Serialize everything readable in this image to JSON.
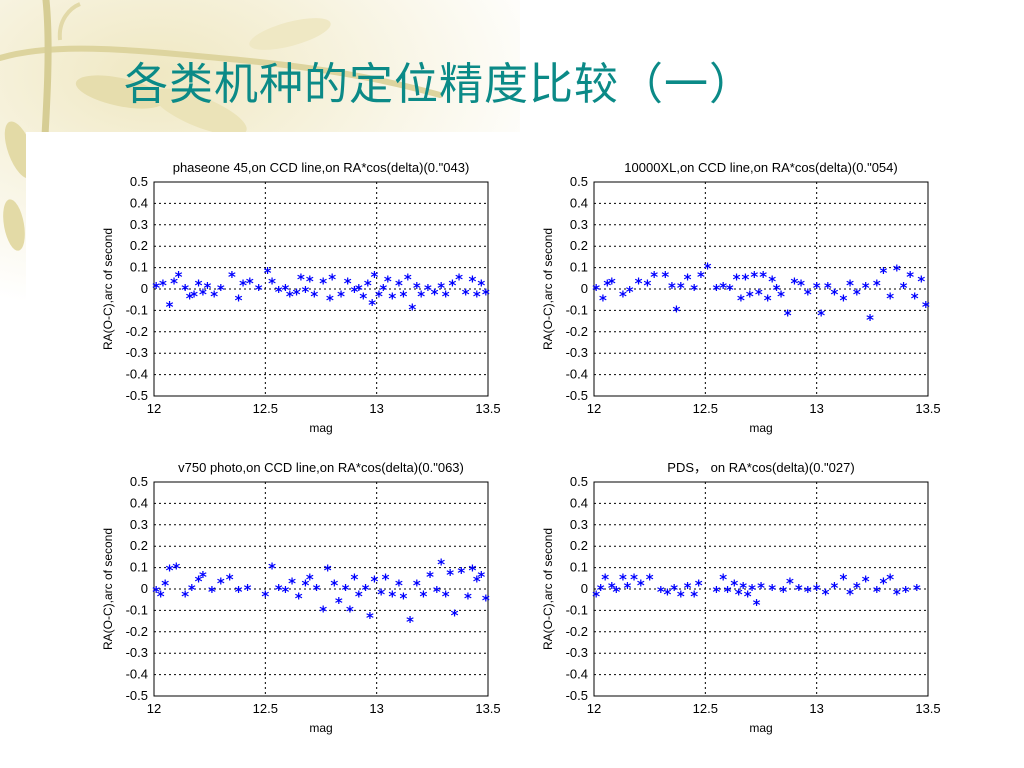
{
  "slide": {
    "title": "各类机种的定位精度比较（一）",
    "accent_color": "#0b8a87",
    "decoration": "cream-bamboo-branch-top-left"
  },
  "chart_data": [
    {
      "type": "scatter",
      "title": "phaseone 45,on CCD line,on RA*cos(delta)(0.\"043)",
      "xlabel": "mag",
      "ylabel": "RA(O-C),arc of second",
      "xlim": [
        12,
        13.5
      ],
      "ylim": [
        -0.5,
        0.5
      ],
      "xticks": [
        "12",
        "12.5",
        "13",
        "13.5"
      ],
      "yticks": [
        "0.5",
        "0.4",
        "0.3",
        "0.2",
        "0.1",
        "0",
        "-0.1",
        "-0.2",
        "-0.3",
        "-0.4",
        "-0.5"
      ],
      "grid": "dashed",
      "marker": "*",
      "color": "#0000ff",
      "points": [
        [
          12.01,
          0.01
        ],
        [
          12.04,
          0.02
        ],
        [
          12.07,
          -0.08
        ],
        [
          12.09,
          0.03
        ],
        [
          12.11,
          0.06
        ],
        [
          12.14,
          0.0
        ],
        [
          12.16,
          -0.04
        ],
        [
          12.18,
          -0.03
        ],
        [
          12.2,
          0.02
        ],
        [
          12.22,
          -0.02
        ],
        [
          12.24,
          0.01
        ],
        [
          12.27,
          -0.03
        ],
        [
          12.3,
          0.0
        ],
        [
          12.35,
          0.06
        ],
        [
          12.38,
          -0.05
        ],
        [
          12.4,
          0.02
        ],
        [
          12.43,
          0.03
        ],
        [
          12.47,
          0.0
        ],
        [
          12.51,
          0.08
        ],
        [
          12.53,
          0.03
        ],
        [
          12.56,
          -0.01
        ],
        [
          12.59,
          0.0
        ],
        [
          12.61,
          -0.03
        ],
        [
          12.64,
          -0.02
        ],
        [
          12.66,
          0.05
        ],
        [
          12.68,
          -0.01
        ],
        [
          12.7,
          0.04
        ],
        [
          12.72,
          -0.03
        ],
        [
          12.76,
          0.03
        ],
        [
          12.79,
          -0.05
        ],
        [
          12.8,
          0.05
        ],
        [
          12.84,
          -0.03
        ],
        [
          12.87,
          0.03
        ],
        [
          12.9,
          -0.01
        ],
        [
          12.92,
          0.0
        ],
        [
          12.94,
          -0.04
        ],
        [
          12.96,
          0.02
        ],
        [
          12.98,
          -0.07
        ],
        [
          12.99,
          0.06
        ],
        [
          13.01,
          -0.03
        ],
        [
          13.03,
          0.0
        ],
        [
          13.05,
          0.04
        ],
        [
          13.07,
          -0.04
        ],
        [
          13.1,
          0.02
        ],
        [
          13.12,
          -0.03
        ],
        [
          13.14,
          0.05
        ],
        [
          13.16,
          -0.09
        ],
        [
          13.18,
          0.01
        ],
        [
          13.2,
          -0.03
        ],
        [
          13.23,
          0.0
        ],
        [
          13.26,
          -0.02
        ],
        [
          13.29,
          0.01
        ],
        [
          13.31,
          -0.03
        ],
        [
          13.34,
          0.02
        ],
        [
          13.37,
          0.05
        ],
        [
          13.4,
          -0.02
        ],
        [
          13.43,
          0.04
        ],
        [
          13.45,
          -0.03
        ],
        [
          13.47,
          0.02
        ],
        [
          13.49,
          -0.02
        ]
      ]
    },
    {
      "type": "scatter",
      "title": "10000XL,on CCD line,on RA*cos(delta)(0.\"054)",
      "xlabel": "mag",
      "ylabel": "RA(O-C),arc of second",
      "xlim": [
        12,
        13.5
      ],
      "ylim": [
        -0.5,
        0.5
      ],
      "xticks": [
        "12",
        "12.5",
        "13",
        "13.5"
      ],
      "yticks": [
        "0.5",
        "0.4",
        "0.3",
        "0.2",
        "0.1",
        "0",
        "-0.1",
        "-0.2",
        "-0.3",
        "-0.4",
        "-0.5"
      ],
      "grid": "dashed",
      "marker": "*",
      "color": "#0000ff",
      "points": [
        [
          12.01,
          0.0
        ],
        [
          12.04,
          -0.05
        ],
        [
          12.06,
          0.02
        ],
        [
          12.08,
          0.03
        ],
        [
          12.13,
          -0.03
        ],
        [
          12.16,
          -0.01
        ],
        [
          12.2,
          0.03
        ],
        [
          12.24,
          0.02
        ],
        [
          12.27,
          0.06
        ],
        [
          12.32,
          0.06
        ],
        [
          12.35,
          0.01
        ],
        [
          12.37,
          -0.1
        ],
        [
          12.39,
          0.01
        ],
        [
          12.42,
          0.05
        ],
        [
          12.45,
          0.0
        ],
        [
          12.48,
          0.06
        ],
        [
          12.51,
          0.1
        ],
        [
          12.55,
          0.0
        ],
        [
          12.58,
          0.01
        ],
        [
          12.61,
          0.0
        ],
        [
          12.64,
          0.05
        ],
        [
          12.66,
          -0.05
        ],
        [
          12.68,
          0.05
        ],
        [
          12.7,
          -0.03
        ],
        [
          12.72,
          0.06
        ],
        [
          12.74,
          -0.02
        ],
        [
          12.76,
          0.06
        ],
        [
          12.78,
          -0.05
        ],
        [
          12.8,
          0.04
        ],
        [
          12.82,
          0.0
        ],
        [
          12.84,
          -0.03
        ],
        [
          12.87,
          -0.12
        ],
        [
          12.9,
          0.03
        ],
        [
          12.93,
          0.02
        ],
        [
          12.96,
          -0.02
        ],
        [
          13.0,
          0.01
        ],
        [
          13.02,
          -0.12
        ],
        [
          13.05,
          0.01
        ],
        [
          13.08,
          -0.02
        ],
        [
          13.12,
          -0.05
        ],
        [
          13.15,
          0.02
        ],
        [
          13.18,
          -0.02
        ],
        [
          13.22,
          0.01
        ],
        [
          13.24,
          -0.14
        ],
        [
          13.27,
          0.02
        ],
        [
          13.3,
          0.08
        ],
        [
          13.33,
          -0.04
        ],
        [
          13.36,
          0.09
        ],
        [
          13.39,
          0.01
        ],
        [
          13.42,
          0.06
        ],
        [
          13.44,
          -0.04
        ],
        [
          13.47,
          0.04
        ],
        [
          13.49,
          -0.08
        ]
      ]
    },
    {
      "type": "scatter",
      "title": "v750 photo,on CCD line,on RA*cos(delta)(0.\"063)",
      "xlabel": "mag",
      "ylabel": "RA(O-C),arc of second",
      "xlim": [
        12,
        13.5
      ],
      "ylim": [
        -0.5,
        0.5
      ],
      "xticks": [
        "12",
        "12.5",
        "13",
        "13.5"
      ],
      "yticks": [
        "0.5",
        "0.4",
        "0.3",
        "0.2",
        "0.1",
        "0",
        "-0.1",
        "-0.2",
        "-0.3",
        "-0.4",
        "-0.5"
      ],
      "grid": "dashed",
      "marker": "*",
      "color": "#0000ff",
      "points": [
        [
          12.01,
          -0.01
        ],
        [
          12.03,
          -0.03
        ],
        [
          12.05,
          0.02
        ],
        [
          12.07,
          0.09
        ],
        [
          12.1,
          0.1
        ],
        [
          12.14,
          -0.03
        ],
        [
          12.17,
          0.0
        ],
        [
          12.2,
          0.04
        ],
        [
          12.22,
          0.06
        ],
        [
          12.26,
          -0.01
        ],
        [
          12.3,
          0.03
        ],
        [
          12.34,
          0.05
        ],
        [
          12.38,
          -0.01
        ],
        [
          12.42,
          0.0
        ],
        [
          12.5,
          -0.03
        ],
        [
          12.53,
          0.1
        ],
        [
          12.56,
          0.0
        ],
        [
          12.59,
          -0.01
        ],
        [
          12.62,
          0.03
        ],
        [
          12.65,
          -0.04
        ],
        [
          12.68,
          0.02
        ],
        [
          12.7,
          0.05
        ],
        [
          12.73,
          0.0
        ],
        [
          12.76,
          -0.1
        ],
        [
          12.78,
          0.09
        ],
        [
          12.81,
          0.02
        ],
        [
          12.83,
          -0.06
        ],
        [
          12.86,
          0.0
        ],
        [
          12.88,
          -0.1
        ],
        [
          12.9,
          0.05
        ],
        [
          12.92,
          -0.03
        ],
        [
          12.95,
          0.0
        ],
        [
          12.97,
          -0.13
        ],
        [
          12.99,
          0.04
        ],
        [
          13.02,
          -0.02
        ],
        [
          13.04,
          0.05
        ],
        [
          13.07,
          -0.03
        ],
        [
          13.1,
          0.02
        ],
        [
          13.12,
          -0.04
        ],
        [
          13.15,
          -0.15
        ],
        [
          13.18,
          0.02
        ],
        [
          13.21,
          -0.03
        ],
        [
          13.24,
          0.06
        ],
        [
          13.27,
          -0.01
        ],
        [
          13.29,
          0.12
        ],
        [
          13.31,
          -0.03
        ],
        [
          13.33,
          0.07
        ],
        [
          13.35,
          -0.12
        ],
        [
          13.38,
          0.08
        ],
        [
          13.41,
          -0.04
        ],
        [
          13.43,
          0.09
        ],
        [
          13.45,
          0.04
        ],
        [
          13.47,
          0.06
        ],
        [
          13.49,
          -0.05
        ]
      ]
    },
    {
      "type": "scatter",
      "title": "PDS， on RA*cos(delta)(0.\"027)",
      "xlabel": "mag",
      "ylabel": "RA(O-C),arc of second",
      "xlim": [
        12,
        13.5
      ],
      "ylim": [
        -0.5,
        0.5
      ],
      "xticks": [
        "12",
        "12.5",
        "13",
        "13.5"
      ],
      "yticks": [
        "0.5",
        "0.4",
        "0.3",
        "0.2",
        "0.1",
        "0",
        "-0.1",
        "-0.2",
        "-0.3",
        "-0.4",
        "-0.5"
      ],
      "grid": "dashed",
      "marker": "*",
      "color": "#0000ff",
      "points": [
        [
          12.01,
          -0.03
        ],
        [
          12.03,
          0.0
        ],
        [
          12.05,
          0.05
        ],
        [
          12.08,
          0.01
        ],
        [
          12.1,
          -0.01
        ],
        [
          12.13,
          0.05
        ],
        [
          12.15,
          0.01
        ],
        [
          12.18,
          0.05
        ],
        [
          12.21,
          0.02
        ],
        [
          12.25,
          0.05
        ],
        [
          12.3,
          -0.01
        ],
        [
          12.33,
          -0.02
        ],
        [
          12.36,
          0.0
        ],
        [
          12.39,
          -0.03
        ],
        [
          12.42,
          0.01
        ],
        [
          12.45,
          -0.03
        ],
        [
          12.47,
          0.02
        ],
        [
          12.55,
          -0.01
        ],
        [
          12.58,
          0.05
        ],
        [
          12.6,
          -0.01
        ],
        [
          12.63,
          0.02
        ],
        [
          12.65,
          -0.02
        ],
        [
          12.67,
          0.01
        ],
        [
          12.69,
          -0.03
        ],
        [
          12.71,
          0.0
        ],
        [
          12.73,
          -0.07
        ],
        [
          12.75,
          0.01
        ],
        [
          12.8,
          0.0
        ],
        [
          12.85,
          -0.01
        ],
        [
          12.88,
          0.03
        ],
        [
          12.92,
          0.0
        ],
        [
          12.96,
          -0.01
        ],
        [
          13.0,
          0.0
        ],
        [
          13.04,
          -0.02
        ],
        [
          13.08,
          0.01
        ],
        [
          13.12,
          0.05
        ],
        [
          13.15,
          -0.02
        ],
        [
          13.18,
          0.01
        ],
        [
          13.22,
          0.04
        ],
        [
          13.27,
          -0.01
        ],
        [
          13.3,
          0.03
        ],
        [
          13.33,
          0.05
        ],
        [
          13.36,
          -0.02
        ],
        [
          13.4,
          -0.01
        ],
        [
          13.45,
          0.0
        ]
      ]
    }
  ]
}
